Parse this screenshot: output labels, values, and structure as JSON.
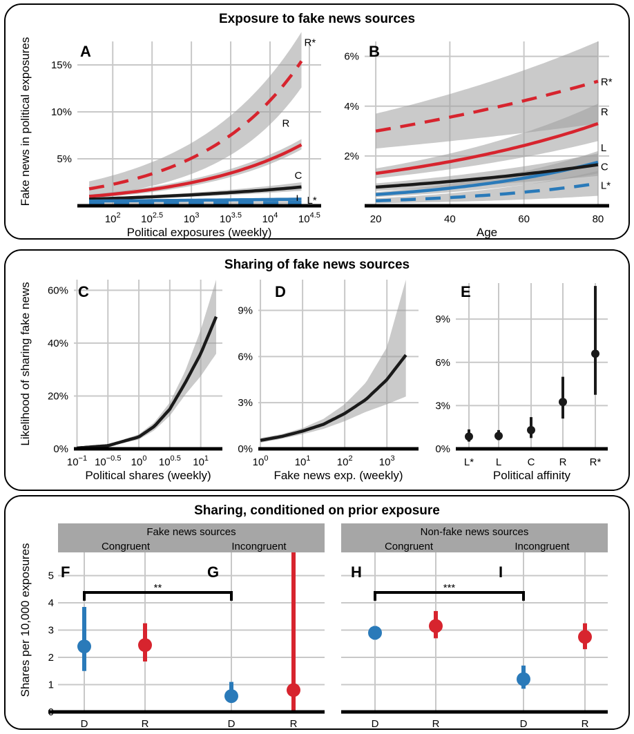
{
  "colors": {
    "red": "#d7242e",
    "blue": "#2a7ab9",
    "black": "#1a1a1a",
    "ci_fill": "#9e9e9e",
    "grid": "#c8c8c8",
    "strip": "#a6a6a6"
  },
  "sections": [
    {
      "title": "Exposure to fake news sources"
    },
    {
      "title": "Sharing of fake news sources"
    },
    {
      "title": "Sharing, conditioned on prior exposure"
    }
  ],
  "chart_data": [
    {
      "panel": "A",
      "type": "line",
      "xlabel": "Political exposures (weekly)",
      "ylabel": "Fake news in political exposures",
      "x_scale": "log10",
      "x_ticks": [
        {
          "base": "10",
          "exp": "2"
        },
        {
          "base": "10",
          "exp": "2.5"
        },
        {
          "base": "10",
          "exp": "3"
        },
        {
          "base": "10",
          "exp": "3.5"
        },
        {
          "base": "10",
          "exp": "4"
        },
        {
          "base": "10",
          "exp": "4.5"
        }
      ],
      "y_ticks": [
        "5%",
        "10%",
        "15%"
      ],
      "ylim_percent": [
        0,
        17.5
      ],
      "xlim_log10": [
        1.55,
        4.65
      ],
      "series": [
        {
          "name": "R*",
          "color": "red",
          "dashed": true,
          "log10_x": [
            1.7,
            4.4
          ],
          "y_percent": [
            1.8,
            15.4
          ],
          "ci_lo": [
            1.0,
            12.6
          ],
          "ci_hi": [
            2.6,
            18.5
          ]
        },
        {
          "name": "R",
          "color": "red",
          "dashed": false,
          "log10_x": [
            1.7,
            4.4
          ],
          "y_percent": [
            1.0,
            6.5
          ],
          "ci_lo": [
            0.8,
            6.0
          ],
          "ci_hi": [
            1.2,
            7.1
          ]
        },
        {
          "name": "C",
          "color": "black",
          "dashed": false,
          "log10_x": [
            1.7,
            4.4
          ],
          "y_percent": [
            0.7,
            2.0
          ],
          "ci_lo": [
            0.6,
            1.6
          ],
          "ci_hi": [
            0.8,
            2.5
          ]
        },
        {
          "name": "L",
          "color": "blue",
          "dashed": false,
          "log10_x": [
            1.7,
            4.4
          ],
          "y_percent": [
            0.5,
            0.7
          ],
          "ci_lo": [
            0.45,
            0.5
          ],
          "ci_hi": [
            0.55,
            0.9
          ]
        },
        {
          "name": "L*",
          "color": "blue",
          "dashed": true,
          "log10_x": [
            1.7,
            4.4
          ],
          "y_percent": [
            0.25,
            0.35
          ],
          "ci_lo": [
            0.15,
            0.2
          ],
          "ci_hi": [
            0.35,
            0.5
          ]
        }
      ]
    },
    {
      "panel": "B",
      "type": "line",
      "xlabel": "Age",
      "ylabel": "",
      "x_ticks": [
        "20",
        "40",
        "60",
        "80"
      ],
      "y_ticks": [
        "2%",
        "4%",
        "6%"
      ],
      "xlim": [
        17,
        83
      ],
      "ylim_percent": [
        0,
        6.6
      ],
      "series": [
        {
          "name": "R*",
          "color": "red",
          "dashed": true,
          "x": [
            20,
            80
          ],
          "y_percent": [
            3.0,
            5.0
          ],
          "ci_lo": [
            2.3,
            3.3
          ],
          "ci_hi": [
            3.7,
            6.6
          ]
        },
        {
          "name": "R",
          "color": "red",
          "dashed": false,
          "x": [
            20,
            80
          ],
          "y_percent": [
            1.3,
            3.3
          ],
          "ci_lo": [
            1.1,
            2.6
          ],
          "ci_hi": [
            1.5,
            4.1
          ]
        },
        {
          "name": "L",
          "color": "blue",
          "dashed": false,
          "x": [
            20,
            80
          ],
          "y_percent": [
            0.45,
            1.75
          ],
          "ci_lo": [
            0.35,
            1.3
          ],
          "ci_hi": [
            0.55,
            2.2
          ]
        },
        {
          "name": "C",
          "color": "black",
          "dashed": false,
          "x": [
            20,
            80
          ],
          "y_percent": [
            0.75,
            1.65
          ],
          "ci_lo": [
            0.6,
            1.2
          ],
          "ci_hi": [
            0.9,
            2.1
          ]
        },
        {
          "name": "L*",
          "color": "blue",
          "dashed": true,
          "x": [
            20,
            80
          ],
          "y_percent": [
            0.2,
            0.9
          ],
          "ci_lo": [
            0.1,
            0.4
          ],
          "ci_hi": [
            0.3,
            1.4
          ]
        }
      ]
    },
    {
      "panel": "C",
      "type": "line",
      "xlabel": "Political shares (weekly)",
      "ylabel": "Likelihood of sharing fake news",
      "x_scale": "log10",
      "x_ticks": [
        {
          "base": "10",
          "exp": "−1"
        },
        {
          "base": "10",
          "exp": "−0.5"
        },
        {
          "base": "10",
          "exp": "0"
        },
        {
          "base": "10",
          "exp": "0.5"
        },
        {
          "base": "10",
          "exp": "1"
        }
      ],
      "y_ticks": [
        "0%",
        "20%",
        "40%",
        "60%"
      ],
      "xlim_log10": [
        -1.05,
        1.35
      ],
      "ylim_percent": [
        0,
        64
      ],
      "series": [
        {
          "name": "",
          "color": "black",
          "log10_x": [
            -1.0,
            -0.5,
            0.0,
            0.25,
            0.5,
            0.75,
            1.0,
            1.25
          ],
          "y_percent": [
            0.3,
            1.2,
            4.5,
            8.5,
            15.0,
            25.0,
            36.0,
            50.0
          ],
          "ci_lo": [
            0.2,
            0.9,
            3.5,
            7.0,
            12.5,
            20.5,
            27.5,
            36.0
          ],
          "ci_hi": [
            0.4,
            1.5,
            5.5,
            10.0,
            17.5,
            29.5,
            45.0,
            64.0
          ]
        }
      ]
    },
    {
      "panel": "D",
      "type": "line",
      "xlabel": "Fake news exp. (weekly)",
      "ylabel": "",
      "x_scale": "log10",
      "x_ticks": [
        {
          "base": "10",
          "exp": "0"
        },
        {
          "base": "10",
          "exp": "1"
        },
        {
          "base": "10",
          "exp": "2"
        },
        {
          "base": "10",
          "exp": "3"
        }
      ],
      "y_ticks": [
        "0%",
        "3%",
        "6%",
        "9%"
      ],
      "xlim_log10": [
        -0.05,
        3.75
      ],
      "ylim_percent": [
        0,
        11
      ],
      "series": [
        {
          "name": "",
          "color": "black",
          "log10_x": [
            0.0,
            0.5,
            1.0,
            1.5,
            2.0,
            2.5,
            3.0,
            3.45
          ],
          "y_percent": [
            0.55,
            0.8,
            1.15,
            1.6,
            2.3,
            3.2,
            4.5,
            6.1
          ],
          "ci_lo": [
            0.4,
            0.65,
            0.95,
            1.3,
            1.8,
            2.4,
            2.9,
            3.4
          ],
          "ci_hi": [
            0.7,
            0.95,
            1.35,
            1.95,
            2.9,
            4.3,
            6.6,
            11.0
          ]
        }
      ]
    },
    {
      "panel": "E",
      "type": "scatter",
      "xlabel": "Political affinity",
      "ylabel": "",
      "categories": [
        "L*",
        "L",
        "C",
        "R",
        "R*"
      ],
      "y_ticks": [
        "0%",
        "3%",
        "6%",
        "9%"
      ],
      "ylim_percent": [
        0,
        11.5
      ],
      "values_percent": [
        0.85,
        0.9,
        1.3,
        3.25,
        6.6
      ],
      "ci_lo": [
        0.5,
        0.6,
        0.75,
        2.1,
        3.75
      ],
      "ci_hi": [
        1.35,
        1.3,
        2.2,
        5.0,
        11.3
      ]
    },
    {
      "panel": "F",
      "type": "scatter",
      "group": "Fake news sources",
      "subgroup": "Congruent",
      "ylabel": "Shares per 10,000 exposures",
      "categories": [
        "D",
        "R"
      ],
      "y_ticks": [
        "0",
        "1",
        "2",
        "3",
        "4",
        "5"
      ],
      "ylim": [
        0,
        5.85
      ],
      "values": [
        2.4,
        2.45
      ],
      "ci_lo": [
        1.5,
        1.85
      ],
      "ci_hi": [
        3.85,
        3.25
      ],
      "colors": [
        "blue",
        "red"
      ]
    },
    {
      "panel": "G",
      "type": "scatter",
      "group": "Fake news sources",
      "subgroup": "Incongruent",
      "categories": [
        "D",
        "R"
      ],
      "ylim": [
        0,
        5.85
      ],
      "values": [
        0.58,
        0.8
      ],
      "ci_lo": [
        0.35,
        0.0
      ],
      "ci_hi": [
        1.1,
        5.85
      ],
      "colors": [
        "blue",
        "red"
      ]
    },
    {
      "panel": "H",
      "type": "scatter",
      "group": "Non-fake news sources",
      "subgroup": "Congruent",
      "categories": [
        "D",
        "R"
      ],
      "ylim": [
        0,
        5.85
      ],
      "values": [
        2.9,
        3.15
      ],
      "ci_lo": [
        2.65,
        2.7
      ],
      "ci_hi": [
        3.15,
        3.7
      ],
      "colors": [
        "blue",
        "red"
      ]
    },
    {
      "panel": "I",
      "type": "scatter",
      "group": "Non-fake news sources",
      "subgroup": "Incongruent",
      "categories": [
        "D",
        "R"
      ],
      "ylim": [
        0,
        5.85
      ],
      "values": [
        1.2,
        2.75
      ],
      "ci_lo": [
        0.85,
        2.3
      ],
      "ci_hi": [
        1.7,
        3.25
      ],
      "colors": [
        "blue",
        "red"
      ]
    }
  ],
  "significance": [
    {
      "label": "**",
      "from": "F.D",
      "to": "G.D"
    },
    {
      "label": "***",
      "from": "H.D",
      "to": "I.D"
    }
  ]
}
